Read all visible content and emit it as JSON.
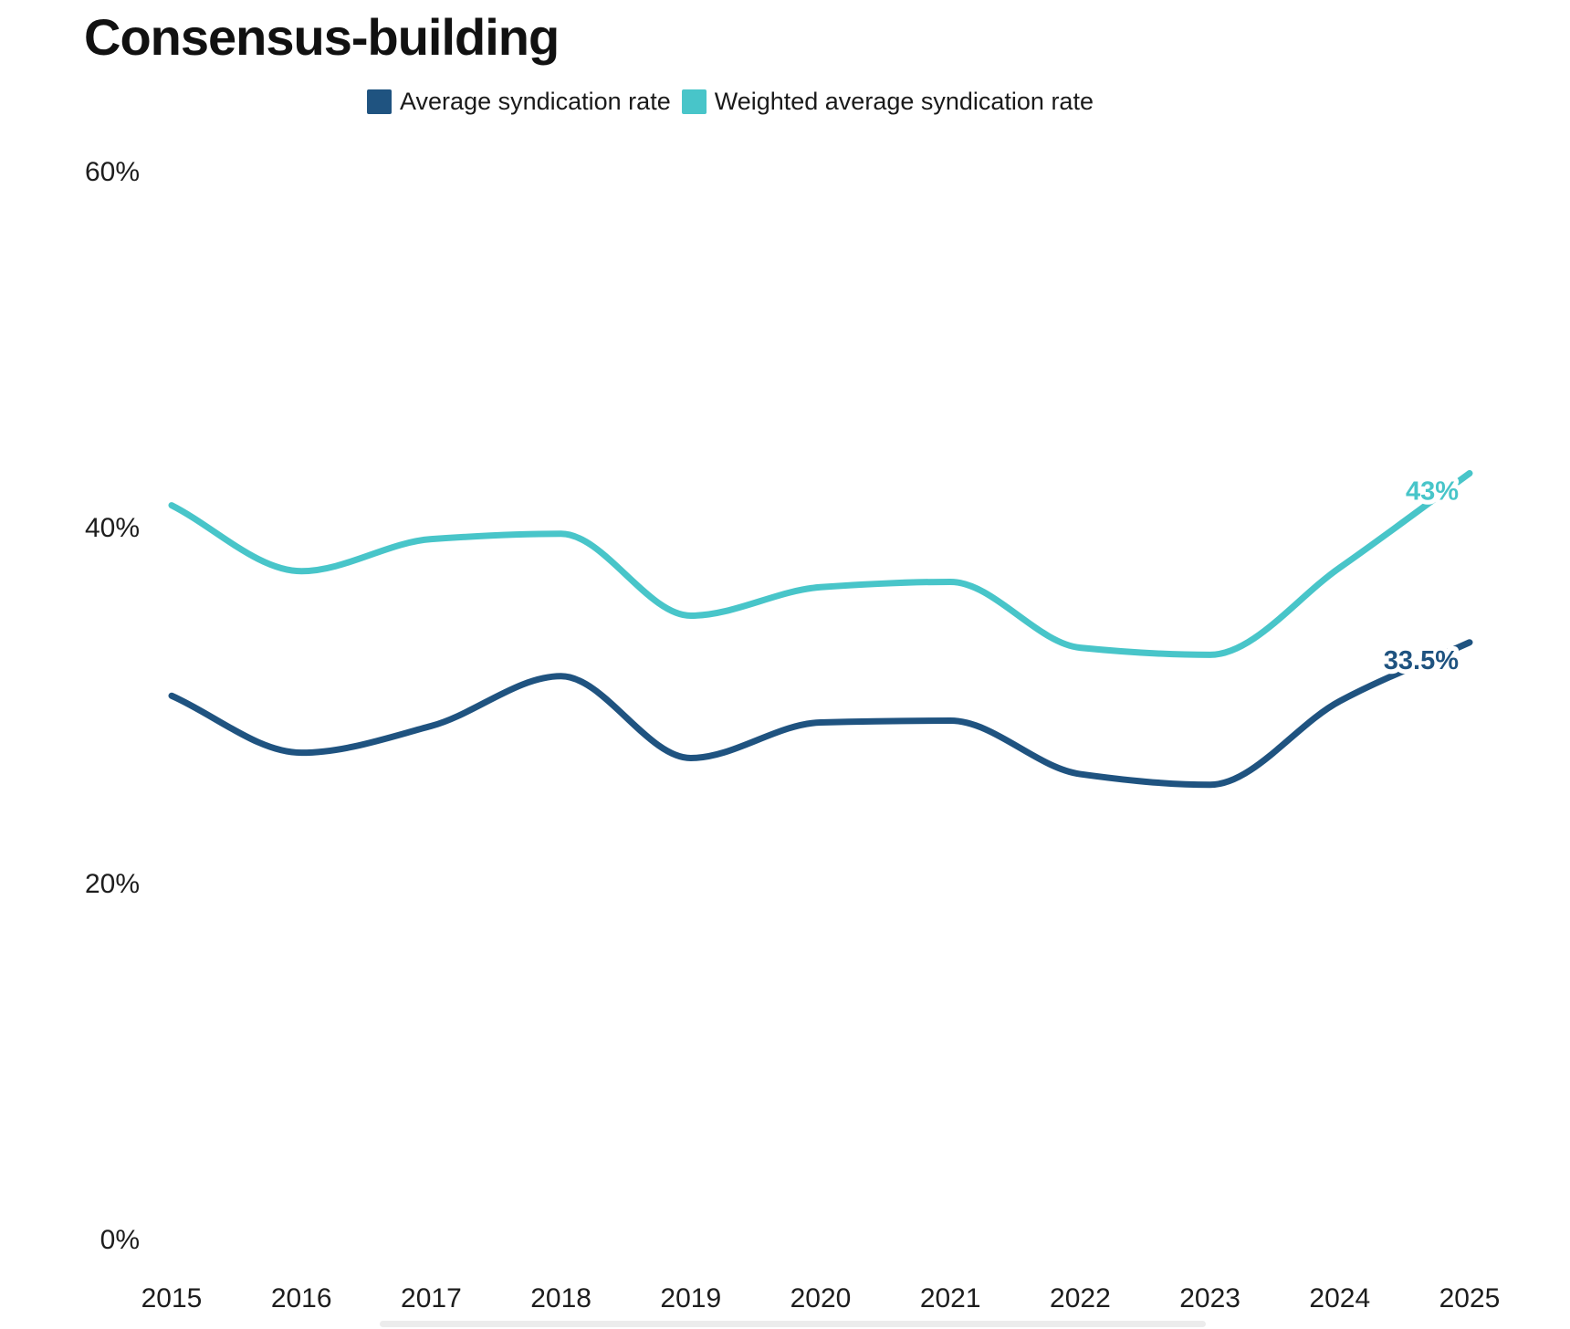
{
  "title": "Consensus-building",
  "legend": [
    {
      "label": "Average syndication rate",
      "color": "#1f5380"
    },
    {
      "label": "Weighted average syndication rate",
      "color": "#48c5c9"
    }
  ],
  "chart_data": {
    "type": "line",
    "title": "Consensus-building",
    "x": [
      2015,
      2016,
      2017,
      2018,
      2019,
      2020,
      2021,
      2022,
      2023,
      2024,
      2025
    ],
    "series": [
      {
        "id": "average",
        "name": "Average syndication rate",
        "color": "#1f5380",
        "values": [
          30.5,
          27.3,
          28.8,
          31.6,
          27.0,
          29.0,
          29.1,
          26.1,
          25.5,
          30.2,
          33.5
        ],
        "end_label": "33.5%"
      },
      {
        "id": "weighted",
        "name": "Weighted average syndication rate",
        "color": "#48c5c9",
        "values": [
          41.2,
          37.5,
          39.3,
          39.6,
          35.0,
          36.6,
          36.9,
          33.2,
          32.8,
          37.7,
          43.0
        ],
        "end_label": "43%"
      }
    ],
    "yticks": [
      {
        "label": "60%",
        "value": 60
      },
      {
        "label": "40%",
        "value": 40
      },
      {
        "label": "20%",
        "value": 20
      },
      {
        "label": "0%",
        "value": 0
      }
    ],
    "ylim": [
      0,
      60
    ],
    "xlabel": "",
    "ylabel": "",
    "grid": false,
    "legend_position": "top",
    "curve": "monotone"
  }
}
